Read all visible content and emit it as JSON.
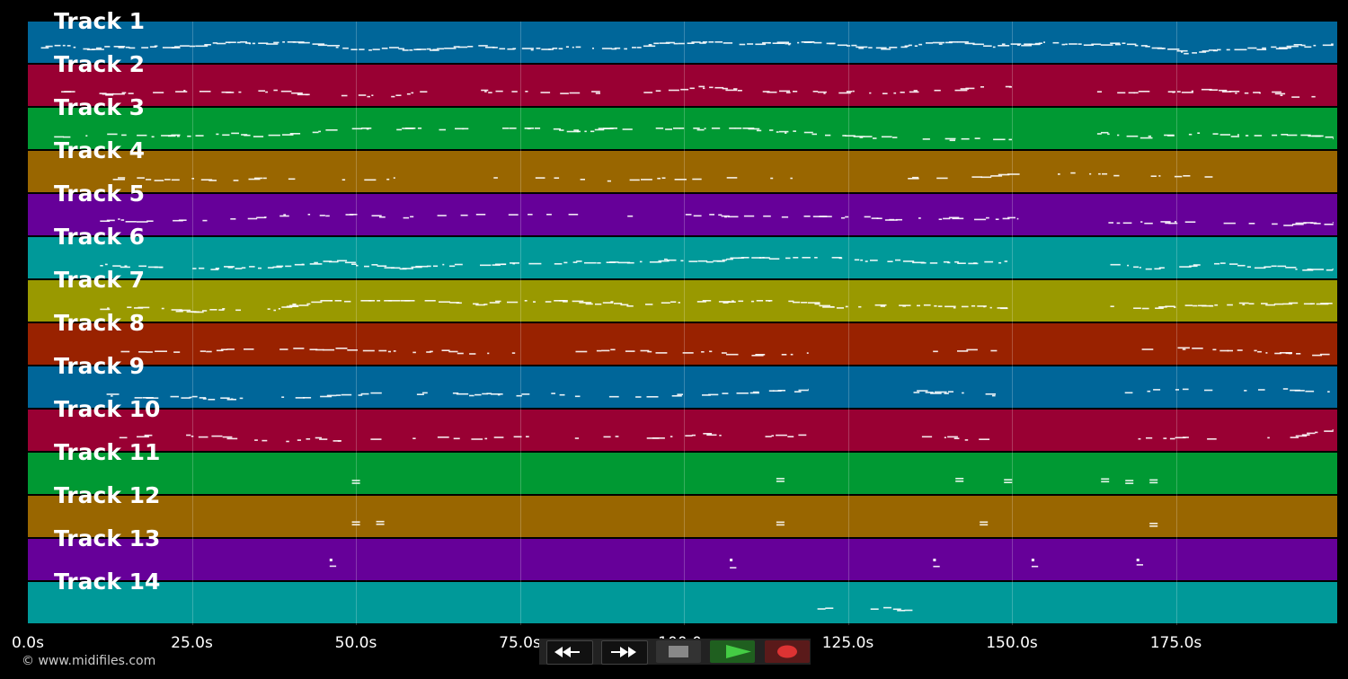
{
  "tracks": [
    {
      "label": "Track 1",
      "color": "#006699"
    },
    {
      "label": "Track 2",
      "color": "#990033"
    },
    {
      "label": "Track 3",
      "color": "#009933"
    },
    {
      "label": "Track 4",
      "color": "#996600"
    },
    {
      "label": "Track 5",
      "color": "#660099"
    },
    {
      "label": "Track 6",
      "color": "#009999"
    },
    {
      "label": "Track 7",
      "color": "#999900"
    },
    {
      "label": "Track 8",
      "color": "#992200"
    },
    {
      "label": "Track 9",
      "color": "#006699"
    },
    {
      "label": "Track 10",
      "color": "#990033"
    },
    {
      "label": "Track 11",
      "color": "#009933"
    },
    {
      "label": "Track 12",
      "color": "#996600"
    },
    {
      "label": "Track 13",
      "color": "#660099"
    },
    {
      "label": "Track 14",
      "color": "#009999"
    }
  ],
  "timeline": {
    "ticks": [
      "0.0s",
      "25.0s",
      "50.0s",
      "75.0s",
      "100.0s",
      "125.0s",
      "150.0s",
      "175.0s"
    ],
    "range_seconds": [
      0,
      200
    ]
  },
  "copyright": "© www.midifiles.com",
  "transport": {
    "buttons": [
      {
        "name": "rewind",
        "icon": "rewind-icon",
        "color": "#111111"
      },
      {
        "name": "fast-forward",
        "icon": "fast-forward-icon",
        "color": "#111111"
      },
      {
        "name": "stop",
        "icon": "stop-icon",
        "color": "#333333"
      },
      {
        "name": "play",
        "icon": "play-icon",
        "color": "#1f5f1f"
      },
      {
        "name": "record",
        "icon": "record-icon",
        "color": "#5a1a1a"
      }
    ]
  }
}
